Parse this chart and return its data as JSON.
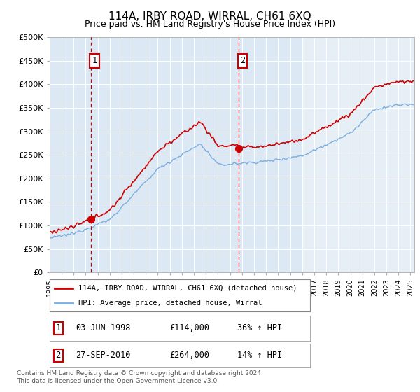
{
  "title": "114A, IRBY ROAD, WIRRAL, CH61 6XQ",
  "subtitle": "Price paid vs. HM Land Registry's House Price Index (HPI)",
  "legend_line1": "114A, IRBY ROAD, WIRRAL, CH61 6XQ (detached house)",
  "legend_line2": "HPI: Average price, detached house, Wirral",
  "transaction1_date": "03-JUN-1998",
  "transaction1_price": 114000,
  "transaction1_note": "36% ↑ HPI",
  "transaction1_year": 1998.42,
  "transaction2_date": "27-SEP-2010",
  "transaction2_price": 264000,
  "transaction2_note": "14% ↑ HPI",
  "transaction2_year": 2010.74,
  "footer": "Contains HM Land Registry data © Crown copyright and database right 2024.\nThis data is licensed under the Open Government Licence v3.0.",
  "price_line_color": "#cc0000",
  "hpi_line_color": "#7aade0",
  "background_color": "#dce9f5",
  "grid_color": "#ffffff",
  "ylim": [
    0,
    500000
  ],
  "yticks": [
    0,
    50000,
    100000,
    150000,
    200000,
    250000,
    300000,
    350000,
    400000,
    450000,
    500000
  ],
  "xlim_start": 1995,
  "xlim_end": 2025.3
}
